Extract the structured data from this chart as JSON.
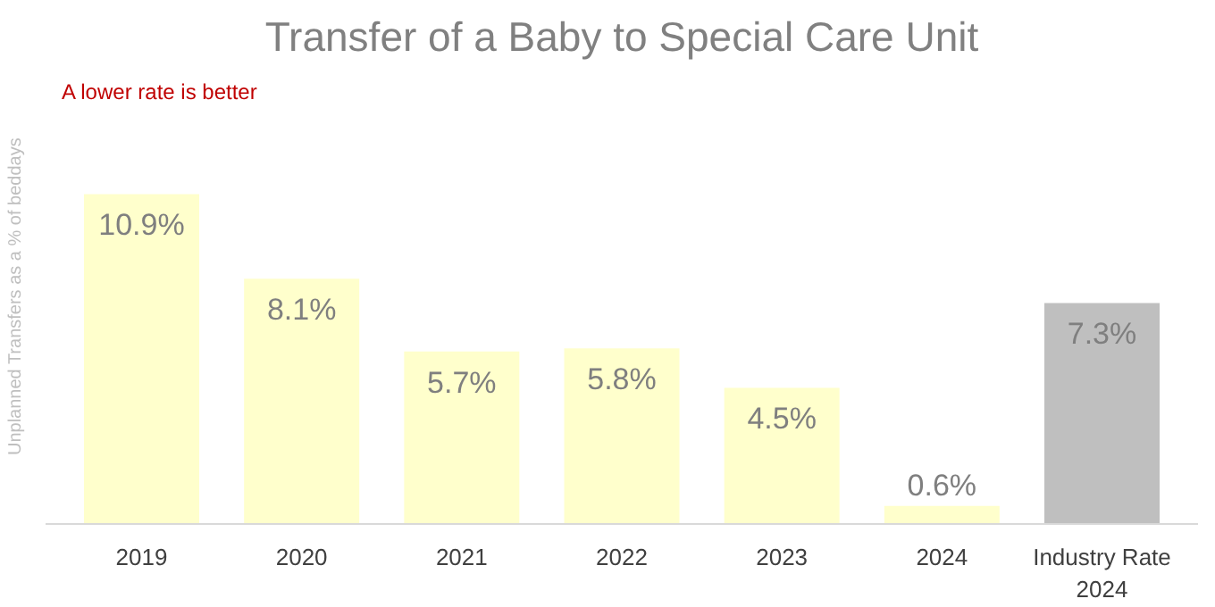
{
  "chart_data": {
    "type": "bar",
    "title": "Transfer of a Baby to Special Care Unit",
    "ylabel": "Unplanned Transfers as a % of beddays",
    "categories": [
      "2019",
      "2020",
      "2021",
      "2022",
      "2023",
      "2024",
      "Industry Rate\n2024"
    ],
    "values": [
      10.9,
      8.1,
      5.7,
      5.8,
      4.5,
      0.6,
      7.3
    ],
    "colors": [
      "#ffffcc",
      "#ffffcc",
      "#ffffcc",
      "#ffffcc",
      "#ffffcc",
      "#ffffcc",
      "#bfbfbf"
    ],
    "value_labels": [
      "10.9%",
      "8.1%",
      "5.7%",
      "5.8%",
      "4.5%",
      "0.6%",
      "7.3%"
    ],
    "annotations": [
      "A lower rate is better"
    ],
    "grid": false
  }
}
